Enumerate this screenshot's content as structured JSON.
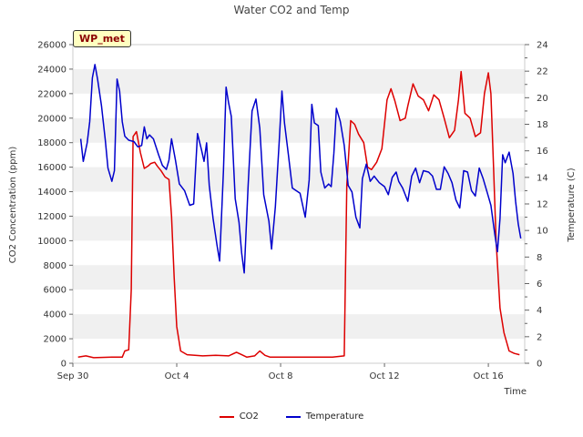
{
  "chart_data": {
    "type": "line",
    "title": "Water CO2 and Temp",
    "badge": "WP_met",
    "xlabel": "Time",
    "ylabel_left": "CO2 Concentration (ppm)",
    "ylabel_right": "Temperature (C)",
    "x_range": [
      0,
      17.4
    ],
    "x_ticks": [
      {
        "x": 0,
        "label": "Sep 30"
      },
      {
        "x": 4,
        "label": "Oct 4"
      },
      {
        "x": 8,
        "label": "Oct 8"
      },
      {
        "x": 12,
        "label": "Oct 12"
      },
      {
        "x": 16,
        "label": "Oct 16"
      }
    ],
    "ylim_left": [
      0,
      26000
    ],
    "yticks_left": [
      0,
      2000,
      4000,
      6000,
      8000,
      10000,
      12000,
      14000,
      16000,
      18000,
      20000,
      22000,
      24000,
      26000
    ],
    "ylim_right": [
      0,
      24
    ],
    "yticks_right": [
      0,
      2,
      4,
      6,
      8,
      10,
      12,
      14,
      16,
      18,
      20,
      22,
      24
    ],
    "grid": "horizontal bands",
    "legend_position": "bottom",
    "series": [
      {
        "name": "CO2",
        "color": "#dd0000",
        "axis": "left",
        "points": [
          [
            0.2,
            500
          ],
          [
            0.5,
            600
          ],
          [
            0.8,
            450
          ],
          [
            1.5,
            500
          ],
          [
            1.9,
            500
          ],
          [
            2.0,
            1000
          ],
          [
            2.15,
            1100
          ],
          [
            2.25,
            6000
          ],
          [
            2.32,
            18500
          ],
          [
            2.45,
            18900
          ],
          [
            2.6,
            17200
          ],
          [
            2.75,
            15900
          ],
          [
            2.9,
            16100
          ],
          [
            3.0,
            16300
          ],
          [
            3.15,
            16400
          ],
          [
            3.25,
            16100
          ],
          [
            3.4,
            15700
          ],
          [
            3.55,
            15200
          ],
          [
            3.7,
            15000
          ],
          [
            3.8,
            12000
          ],
          [
            3.9,
            7000
          ],
          [
            4.0,
            3000
          ],
          [
            4.15,
            1000
          ],
          [
            4.4,
            700
          ],
          [
            5.0,
            600
          ],
          [
            5.5,
            650
          ],
          [
            6.0,
            600
          ],
          [
            6.3,
            900
          ],
          [
            6.5,
            700
          ],
          [
            6.7,
            500
          ],
          [
            7.0,
            600
          ],
          [
            7.2,
            1000
          ],
          [
            7.4,
            650
          ],
          [
            7.6,
            500
          ],
          [
            8.5,
            500
          ],
          [
            9.0,
            500
          ],
          [
            10.0,
            500
          ],
          [
            10.45,
            600
          ],
          [
            10.55,
            14500
          ],
          [
            10.7,
            19800
          ],
          [
            10.85,
            19500
          ],
          [
            11.0,
            18700
          ],
          [
            11.2,
            18000
          ],
          [
            11.35,
            16000
          ],
          [
            11.5,
            15800
          ],
          [
            11.7,
            16400
          ],
          [
            11.9,
            17500
          ],
          [
            12.1,
            21500
          ],
          [
            12.25,
            22400
          ],
          [
            12.4,
            21400
          ],
          [
            12.6,
            19800
          ],
          [
            12.8,
            20000
          ],
          [
            12.9,
            21000
          ],
          [
            13.1,
            22800
          ],
          [
            13.3,
            21800
          ],
          [
            13.5,
            21500
          ],
          [
            13.7,
            20600
          ],
          [
            13.9,
            21900
          ],
          [
            14.1,
            21500
          ],
          [
            14.3,
            20000
          ],
          [
            14.5,
            18400
          ],
          [
            14.7,
            19000
          ],
          [
            14.85,
            21500
          ],
          [
            14.95,
            23800
          ],
          [
            15.1,
            20400
          ],
          [
            15.3,
            20000
          ],
          [
            15.5,
            18500
          ],
          [
            15.7,
            18800
          ],
          [
            15.85,
            22000
          ],
          [
            16.0,
            23700
          ],
          [
            16.1,
            22000
          ],
          [
            16.2,
            16000
          ],
          [
            16.3,
            10000
          ],
          [
            16.45,
            4500
          ],
          [
            16.6,
            2500
          ],
          [
            16.8,
            1000
          ],
          [
            17.0,
            800
          ],
          [
            17.2,
            700
          ]
        ]
      },
      {
        "name": "Temperature",
        "color": "#0000cc",
        "axis": "right",
        "points": [
          [
            0.3,
            16.9
          ],
          [
            0.4,
            15.2
          ],
          [
            0.55,
            16.6
          ],
          [
            0.65,
            18.2
          ],
          [
            0.75,
            21.5
          ],
          [
            0.85,
            22.5
          ],
          [
            0.95,
            21.4
          ],
          [
            1.1,
            19.4
          ],
          [
            1.25,
            16.8
          ],
          [
            1.35,
            14.7
          ],
          [
            1.5,
            13.7
          ],
          [
            1.6,
            14.5
          ],
          [
            1.7,
            21.4
          ],
          [
            1.8,
            20.5
          ],
          [
            1.9,
            18.2
          ],
          [
            2.0,
            17.1
          ],
          [
            2.15,
            16.8
          ],
          [
            2.35,
            16.7
          ],
          [
            2.5,
            16.3
          ],
          [
            2.65,
            16.4
          ],
          [
            2.75,
            17.8
          ],
          [
            2.85,
            16.9
          ],
          [
            2.95,
            17.2
          ],
          [
            3.1,
            16.9
          ],
          [
            3.3,
            15.7
          ],
          [
            3.45,
            14.9
          ],
          [
            3.6,
            14.6
          ],
          [
            3.7,
            15.3
          ],
          [
            3.8,
            16.9
          ],
          [
            3.95,
            15.3
          ],
          [
            4.1,
            13.5
          ],
          [
            4.3,
            13.0
          ],
          [
            4.5,
            11.9
          ],
          [
            4.65,
            12.0
          ],
          [
            4.8,
            17.3
          ],
          [
            4.95,
            16.1
          ],
          [
            5.05,
            15.2
          ],
          [
            5.15,
            16.6
          ],
          [
            5.25,
            13.4
          ],
          [
            5.4,
            10.9
          ],
          [
            5.55,
            8.9
          ],
          [
            5.65,
            7.7
          ],
          [
            5.8,
            14.5
          ],
          [
            5.9,
            20.8
          ],
          [
            6.0,
            19.6
          ],
          [
            6.1,
            18.6
          ],
          [
            6.25,
            12.4
          ],
          [
            6.4,
            10.6
          ],
          [
            6.5,
            8.3
          ],
          [
            6.6,
            6.8
          ],
          [
            6.75,
            13.4
          ],
          [
            6.9,
            19.0
          ],
          [
            7.05,
            19.9
          ],
          [
            7.2,
            17.7
          ],
          [
            7.35,
            12.7
          ],
          [
            7.55,
            10.7
          ],
          [
            7.65,
            8.6
          ],
          [
            7.8,
            11.8
          ],
          [
            7.95,
            16.8
          ],
          [
            8.05,
            20.5
          ],
          [
            8.15,
            18.1
          ],
          [
            8.3,
            15.7
          ],
          [
            8.45,
            13.2
          ],
          [
            8.6,
            13.0
          ],
          [
            8.75,
            12.8
          ],
          [
            8.95,
            11.0
          ],
          [
            9.1,
            13.8
          ],
          [
            9.2,
            19.5
          ],
          [
            9.3,
            18.1
          ],
          [
            9.45,
            17.9
          ],
          [
            9.55,
            14.4
          ],
          [
            9.7,
            13.2
          ],
          [
            9.85,
            13.5
          ],
          [
            9.95,
            13.3
          ],
          [
            10.05,
            15.8
          ],
          [
            10.15,
            19.2
          ],
          [
            10.3,
            18.2
          ],
          [
            10.45,
            16.4
          ],
          [
            10.6,
            13.4
          ],
          [
            10.75,
            12.9
          ],
          [
            10.9,
            11.0
          ],
          [
            11.05,
            10.2
          ],
          [
            11.15,
            13.9
          ],
          [
            11.3,
            15.0
          ],
          [
            11.45,
            13.7
          ],
          [
            11.6,
            14.1
          ],
          [
            11.8,
            13.6
          ],
          [
            12.0,
            13.3
          ],
          [
            12.15,
            12.7
          ],
          [
            12.3,
            14.0
          ],
          [
            12.45,
            14.4
          ],
          [
            12.55,
            13.7
          ],
          [
            12.7,
            13.2
          ],
          [
            12.9,
            12.2
          ],
          [
            13.05,
            14.1
          ],
          [
            13.2,
            14.7
          ],
          [
            13.35,
            13.6
          ],
          [
            13.5,
            14.5
          ],
          [
            13.7,
            14.4
          ],
          [
            13.85,
            14.1
          ],
          [
            14.0,
            13.1
          ],
          [
            14.15,
            13.1
          ],
          [
            14.3,
            14.8
          ],
          [
            14.45,
            14.3
          ],
          [
            14.6,
            13.6
          ],
          [
            14.75,
            12.3
          ],
          [
            14.9,
            11.7
          ],
          [
            15.05,
            14.5
          ],
          [
            15.2,
            14.4
          ],
          [
            15.35,
            13.0
          ],
          [
            15.5,
            12.6
          ],
          [
            15.65,
            14.7
          ],
          [
            15.8,
            13.9
          ],
          [
            15.95,
            12.9
          ],
          [
            16.1,
            11.9
          ],
          [
            16.25,
            9.7
          ],
          [
            16.35,
            8.4
          ],
          [
            16.45,
            10.9
          ],
          [
            16.55,
            15.7
          ],
          [
            16.65,
            15.1
          ],
          [
            16.8,
            15.9
          ],
          [
            16.95,
            14.3
          ],
          [
            17.05,
            12.2
          ],
          [
            17.15,
            10.5
          ],
          [
            17.25,
            9.4
          ]
        ]
      }
    ]
  }
}
